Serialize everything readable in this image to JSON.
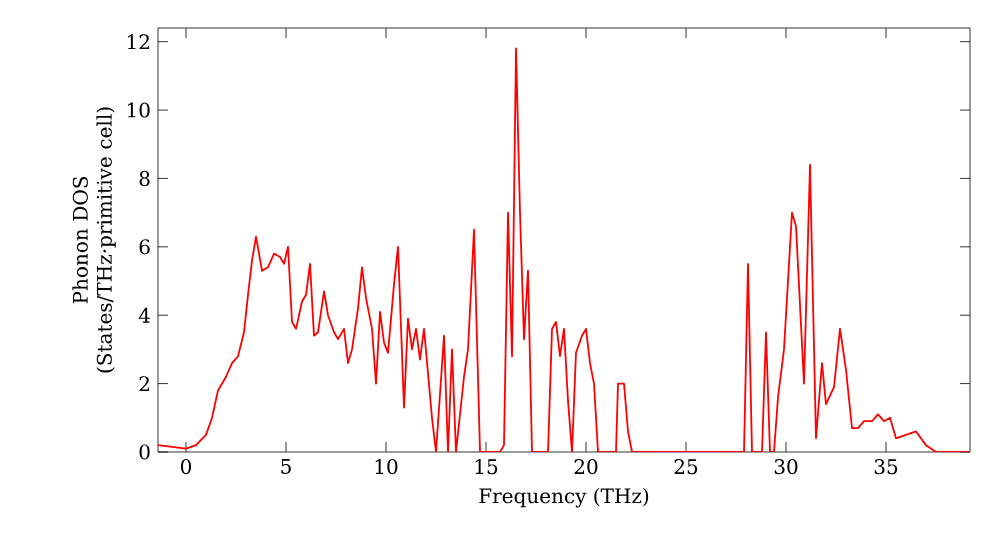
{
  "chart_data": {
    "type": "line",
    "xlabel": "Frequency (THz)",
    "ylabel": "Phonon DOS\n(States/THz·primitive cell)",
    "xlim": [
      -1.4,
      39.2
    ],
    "ylim": [
      0,
      12.4
    ],
    "xticks": [
      0,
      5,
      10,
      15,
      20,
      25,
      30,
      35
    ],
    "yticks": [
      0,
      2,
      4,
      6,
      8,
      10,
      12
    ],
    "marker": "none",
    "line_style": "solid",
    "series": [
      {
        "color": "#ff0000",
        "x": [
          -1.4,
          0,
          0.5,
          1,
          1.3,
          1.6,
          2,
          2.3,
          2.6,
          2.9,
          3.1,
          3.3,
          3.5,
          3.8,
          4.1,
          4.4,
          4.7,
          4.9,
          5.1,
          5.3,
          5.5,
          5.8,
          6.0,
          6.2,
          6.4,
          6.6,
          6.9,
          7.1,
          7.4,
          7.6,
          7.9,
          8.1,
          8.3,
          8.6,
          8.8,
          9.0,
          9.3,
          9.5,
          9.7,
          9.9,
          10.1,
          10.4,
          10.6,
          10.9,
          11.1,
          11.3,
          11.5,
          11.7,
          11.9,
          12.1,
          12.3,
          12.5,
          12.9,
          13.1,
          13.3,
          13.5,
          13.9,
          14.1,
          14.4,
          14.7,
          15.7,
          15.9,
          16.1,
          16.3,
          16.5,
          16.7,
          16.9,
          17.1,
          17.3,
          18.1,
          18.3,
          18.5,
          18.7,
          18.9,
          19.1,
          19.3,
          19.5,
          19.8,
          20.0,
          20.2,
          20.4,
          20.6,
          21.5,
          21.6,
          21.9,
          22.1,
          22.3,
          27.9,
          28.1,
          28.3,
          28.8,
          29.0,
          29.2,
          29.4,
          29.6,
          29.9,
          30.3,
          30.5,
          30.9,
          31.2,
          31.5,
          31.8,
          32.0,
          32.4,
          32.7,
          33.0,
          33.3,
          33.6,
          33.9,
          34.3,
          34.6,
          34.9,
          35.2,
          35.5,
          36.0,
          36.5,
          37.0,
          37.5,
          39.2
        ],
        "values": [
          0.2,
          0.1,
          0.2,
          0.5,
          1.0,
          1.8,
          2.2,
          2.6,
          2.8,
          3.5,
          4.6,
          5.6,
          6.3,
          5.3,
          5.4,
          5.8,
          5.7,
          5.5,
          6.0,
          3.8,
          3.6,
          4.4,
          4.6,
          5.5,
          3.4,
          3.5,
          4.7,
          4.0,
          3.5,
          3.3,
          3.6,
          2.6,
          3.0,
          4.2,
          5.4,
          4.5,
          3.6,
          2.0,
          4.1,
          3.2,
          2.9,
          4.9,
          6.0,
          1.3,
          3.9,
          3.0,
          3.6,
          2.7,
          3.6,
          2.3,
          1.0,
          0,
          3.4,
          0,
          3.0,
          0,
          2.2,
          3.0,
          6.5,
          0,
          0,
          0.2,
          7.0,
          2.8,
          11.8,
          7.0,
          3.3,
          5.3,
          0,
          0,
          3.6,
          3.8,
          2.8,
          3.6,
          1.5,
          0,
          2.9,
          3.4,
          3.6,
          2.6,
          2.0,
          0,
          0,
          2.0,
          2.0,
          0.6,
          0,
          0,
          5.5,
          0,
          0,
          3.5,
          0,
          0,
          1.6,
          3.0,
          7.0,
          6.6,
          2.0,
          8.4,
          0.4,
          2.6,
          1.4,
          1.9,
          3.6,
          2.4,
          0.7,
          0.7,
          0.9,
          0.9,
          1.1,
          0.9,
          1.0,
          0.4,
          0.5,
          0.6,
          0.2,
          0,
          0
        ]
      }
    ]
  }
}
